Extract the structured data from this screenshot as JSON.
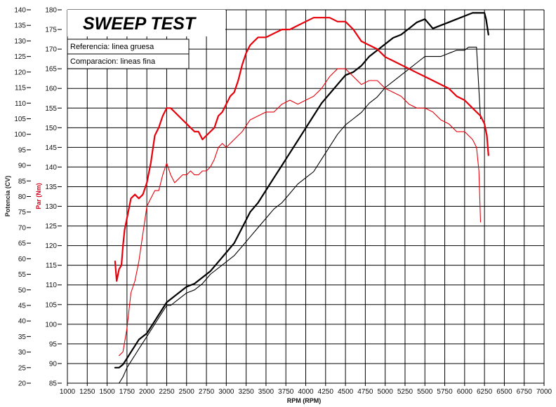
{
  "chart_data": {
    "type": "line",
    "title": "SWEEP TEST",
    "legend": [
      {
        "label": "Referencia: linea gruesa",
        "style": "thick"
      },
      {
        "label": "Comparacion: lineas fina",
        "style": "thin"
      }
    ],
    "xlabel": "RPM (RPM)",
    "ylabel_left": "Potencia (CV)",
    "ylabel_right": "Par (Nm)",
    "xlim": [
      1000,
      7000
    ],
    "ylim_power": [
      20,
      140
    ],
    "ylim_torque": [
      85,
      180
    ],
    "x_ticks": [
      "1000",
      "1250",
      "1500",
      "1750",
      "2000",
      "2250",
      "2500",
      "2750",
      "3000",
      "3250",
      "3500",
      "3750",
      "4000",
      "4250",
      "4500",
      "4750",
      "5000",
      "5250",
      "5500",
      "5750",
      "6000",
      "6250",
      "6500",
      "6750",
      "7000"
    ],
    "power_ticks": [
      "140",
      "135",
      "130",
      "125",
      "120",
      "115",
      "110",
      "105",
      "100",
      "95",
      "90",
      "85",
      "80",
      "75",
      "70",
      "65",
      "60",
      "55",
      "50",
      "45",
      "40",
      "35",
      "30",
      "25",
      "20"
    ],
    "torque_ticks": [
      "180",
      "175",
      "170",
      "165",
      "160",
      "155",
      "150",
      "145",
      "140",
      "135",
      "130",
      "125",
      "120",
      "115",
      "110",
      "105",
      "100",
      "95",
      "90",
      "85"
    ],
    "colors": {
      "power": "#000000",
      "torque": "#e8000b",
      "grid": "#000000"
    },
    "series": [
      {
        "name": "Potencia referencia",
        "axis": "power",
        "line": "thick",
        "x": [
          1600,
          1650,
          1700,
          1750,
          1800,
          1850,
          1900,
          2000,
          2100,
          2200,
          2250,
          2300,
          2400,
          2500,
          2600,
          2700,
          2800,
          2900,
          3000,
          3100,
          3200,
          3300,
          3400,
          3500,
          3600,
          3700,
          3800,
          3900,
          4000,
          4100,
          4200,
          4300,
          4400,
          4500,
          4600,
          4700,
          4800,
          4900,
          5000,
          5100,
          5200,
          5300,
          5400,
          5500,
          5600,
          5700,
          5800,
          5900,
          6000,
          6100,
          6150,
          6200,
          6250,
          6270,
          6300
        ],
        "y": [
          25,
          25,
          26,
          28,
          30,
          32,
          34,
          36,
          40,
          44,
          46,
          47,
          49,
          51,
          52,
          54,
          56,
          59,
          62,
          65,
          70,
          75,
          78,
          82,
          86,
          90,
          94,
          98,
          102,
          106,
          110,
          113,
          116,
          119,
          120,
          122,
          125,
          127,
          129,
          131,
          132,
          134,
          136,
          137,
          134,
          135,
          136,
          137,
          138,
          139,
          139,
          139,
          139,
          137,
          132
        ]
      },
      {
        "name": "Potencia comparacion",
        "axis": "power",
        "line": "thin",
        "x": [
          1650,
          1700,
          1750,
          1800,
          1850,
          1900,
          1950,
          2000,
          2100,
          2200,
          2250,
          2300,
          2400,
          2500,
          2600,
          2700,
          2800,
          2900,
          3000,
          3100,
          3200,
          3300,
          3400,
          3500,
          3600,
          3700,
          3800,
          3900,
          4000,
          4100,
          4200,
          4300,
          4400,
          4500,
          4600,
          4700,
          4800,
          4900,
          5000,
          5100,
          5200,
          5300,
          5400,
          5500,
          5600,
          5700,
          5800,
          5900,
          6000,
          6050,
          6100,
          6150,
          6200
        ],
        "y": [
          20,
          22,
          25,
          27,
          29,
          31,
          33,
          35,
          39,
          43,
          45,
          45,
          47,
          49,
          50,
          52,
          55,
          57,
          59,
          61,
          64,
          67,
          70,
          73,
          76,
          78,
          81,
          84,
          86,
          88,
          92,
          96,
          100,
          103,
          105,
          107,
          110,
          112,
          115,
          117,
          119,
          121,
          123,
          125,
          125,
          125,
          126,
          127,
          127,
          128,
          128,
          128,
          105
        ]
      },
      {
        "name": "Par referencia",
        "axis": "torque",
        "line": "thick",
        "x": [
          1600,
          1620,
          1650,
          1680,
          1700,
          1720,
          1750,
          1780,
          1800,
          1850,
          1900,
          1950,
          2000,
          2050,
          2100,
          2150,
          2200,
          2250,
          2300,
          2350,
          2400,
          2450,
          2500,
          2550,
          2600,
          2650,
          2700,
          2750,
          2800,
          2850,
          2900,
          2950,
          3000,
          3050,
          3100,
          3150,
          3200,
          3250,
          3300,
          3350,
          3400,
          3500,
          3600,
          3700,
          3800,
          3900,
          4000,
          4100,
          4200,
          4300,
          4400,
          4500,
          4600,
          4700,
          4800,
          4900,
          5000,
          5100,
          5200,
          5300,
          5400,
          5500,
          5600,
          5700,
          5800,
          5900,
          6000,
          6100,
          6200,
          6250,
          6280,
          6300
        ],
        "y": [
          116,
          111,
          114,
          115,
          120,
          124,
          127,
          130,
          132,
          133,
          132,
          133,
          136,
          141,
          148,
          150,
          153,
          155,
          155,
          154,
          153,
          152,
          151,
          150,
          149,
          149,
          147,
          148,
          149,
          150,
          153,
          154,
          156,
          158,
          159,
          162,
          166,
          169,
          171,
          172,
          173,
          173,
          174,
          175,
          175,
          176,
          177,
          178,
          178,
          178,
          177,
          177,
          175,
          172,
          171,
          170,
          168,
          167,
          166,
          165,
          164,
          163,
          162,
          161,
          160,
          158,
          157,
          155,
          153,
          151,
          148,
          143
        ]
      },
      {
        "name": "Par comparacion",
        "axis": "torque",
        "line": "thin",
        "x": [
          1650,
          1700,
          1750,
          1800,
          1850,
          1900,
          1950,
          2000,
          2050,
          2100,
          2150,
          2200,
          2250,
          2300,
          2350,
          2400,
          2450,
          2500,
          2550,
          2600,
          2650,
          2700,
          2750,
          2800,
          2850,
          2900,
          2950,
          3000,
          3100,
          3200,
          3300,
          3400,
          3500,
          3600,
          3700,
          3800,
          3900,
          4000,
          4100,
          4200,
          4300,
          4400,
          4500,
          4600,
          4700,
          4800,
          4900,
          5000,
          5100,
          5200,
          5300,
          5400,
          5500,
          5600,
          5700,
          5800,
          5900,
          6000,
          6100,
          6150,
          6180,
          6200
        ],
        "y": [
          92,
          93,
          99,
          108,
          111,
          116,
          123,
          130,
          132,
          134,
          134,
          138,
          141,
          138,
          136,
          137,
          138,
          138,
          139,
          138,
          138,
          139,
          139,
          140,
          142,
          145,
          146,
          145,
          147,
          149,
          152,
          153,
          154,
          154,
          156,
          157,
          156,
          157,
          158,
          160,
          163,
          165,
          165,
          163,
          161,
          162,
          162,
          160,
          159,
          158,
          156,
          155,
          155,
          154,
          152,
          151,
          149,
          149,
          147,
          145,
          139,
          126
        ]
      }
    ]
  }
}
